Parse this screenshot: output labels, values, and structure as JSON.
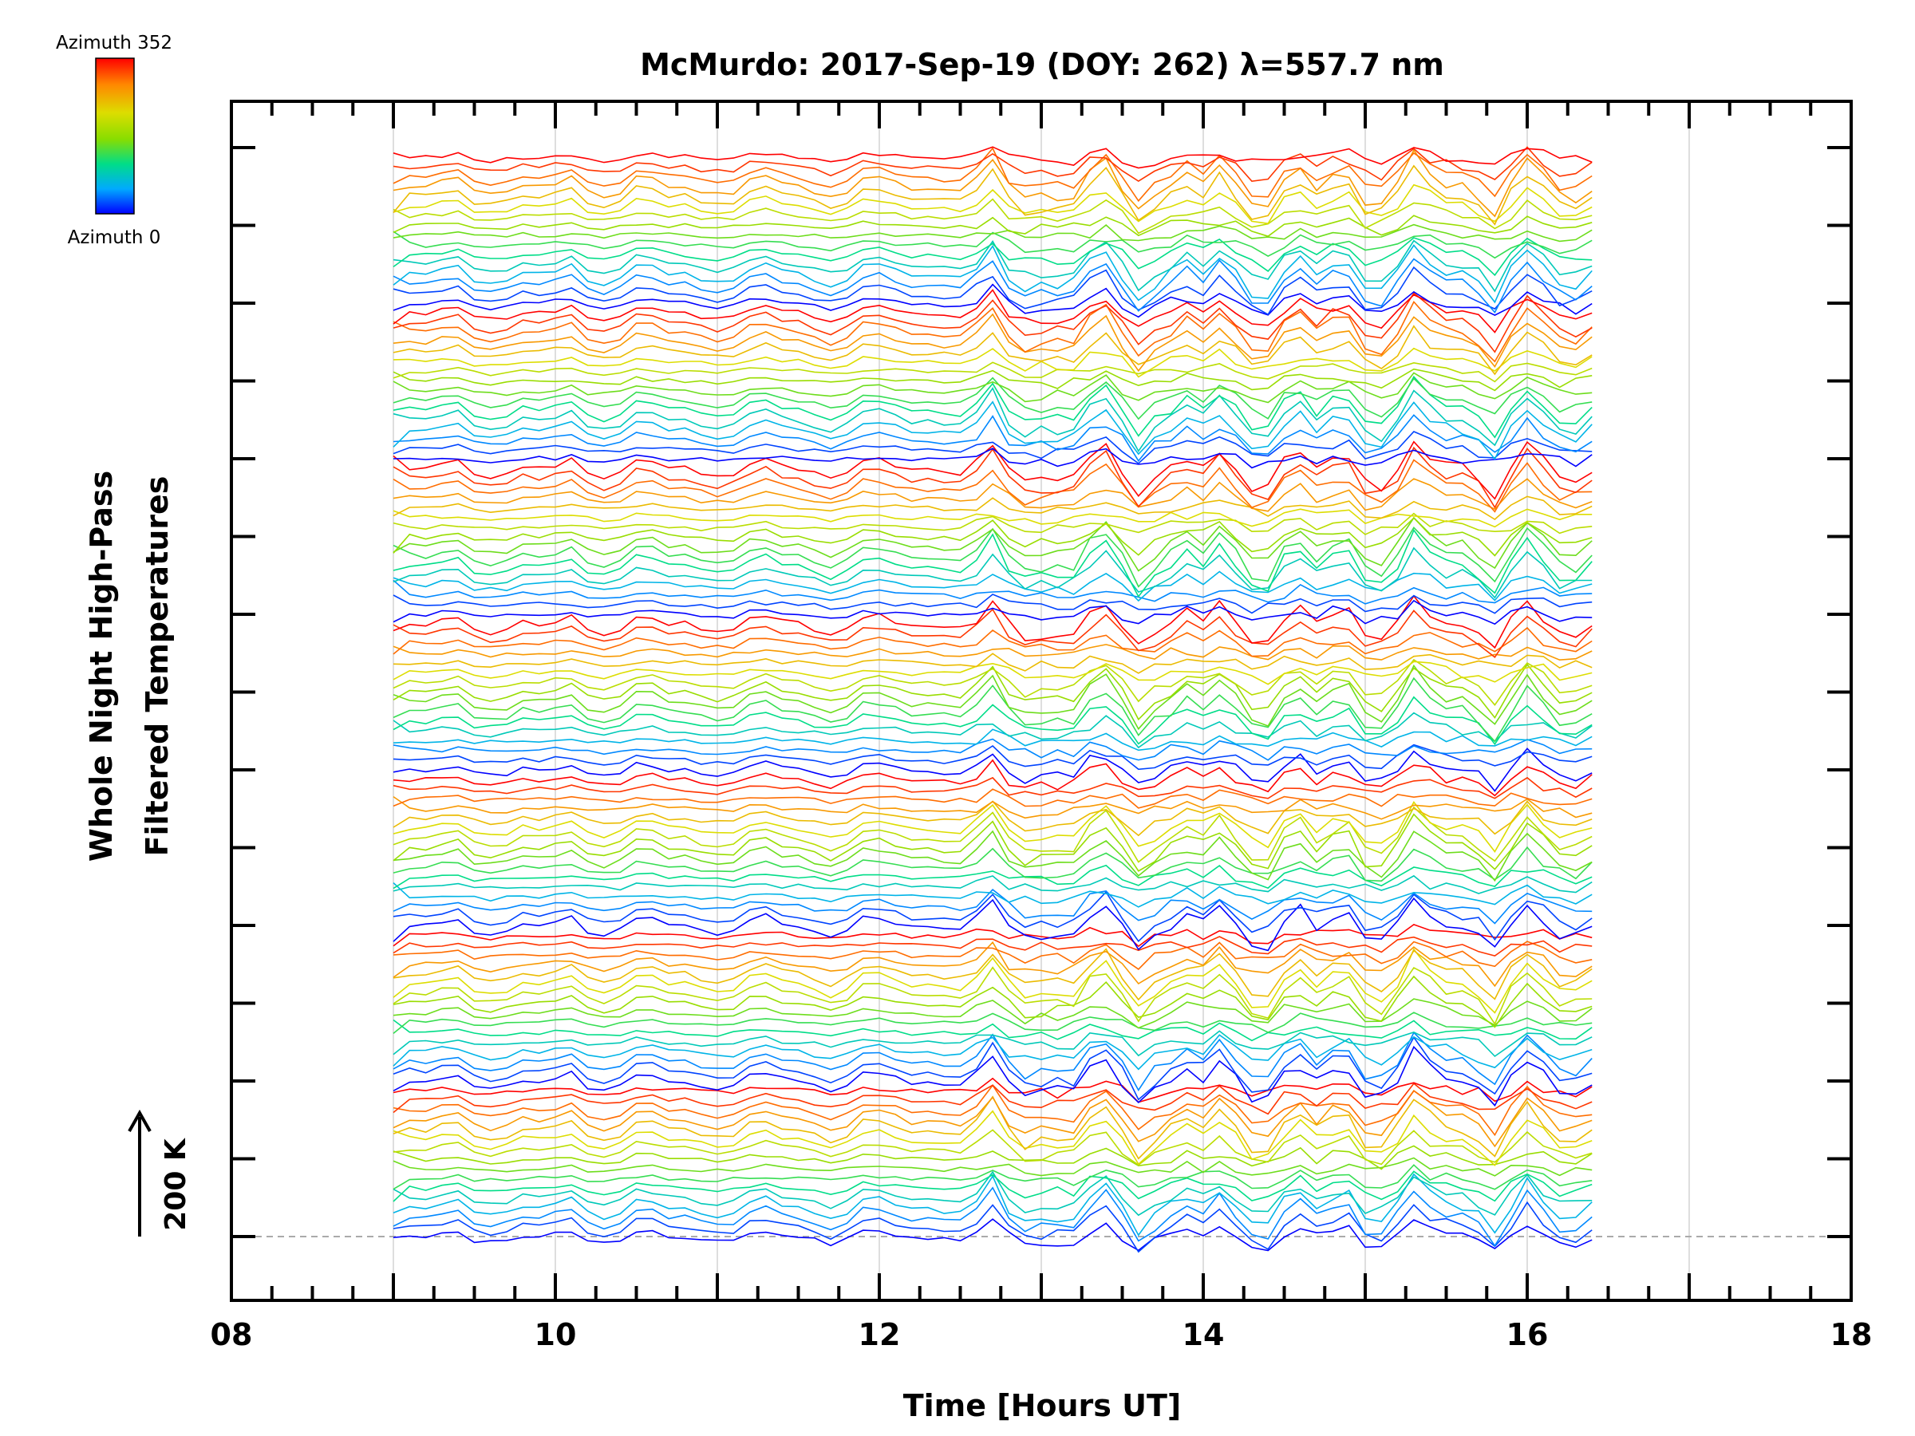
{
  "chart_data": {
    "type": "line",
    "title": "McMurdo: 2017-Sep-19 (DOY: 262) λ=557.7 nm",
    "xlabel": "Time [Hours UT]",
    "ylabel_lines": [
      "Whole Night High-Pass",
      "Filtered Temperatures"
    ],
    "xlim": [
      8,
      18
    ],
    "x_tick_labels": [
      "08",
      "10",
      "12",
      "14",
      "16",
      "18"
    ],
    "x_tick_values": [
      8,
      10,
      12,
      14,
      16,
      18
    ],
    "x_gridlines": [
      9,
      10,
      11,
      12,
      13,
      14,
      15,
      16,
      17
    ],
    "data_range_hours": [
      9.0,
      16.45
    ],
    "sample_interval_hours": 0.1,
    "y_scale_label": "200 K",
    "y_major_ticks": 15,
    "n_groups": 7,
    "azimuths_per_group": 16,
    "color_legend": {
      "top_label": "Azimuth 352",
      "bottom_label": "Azimuth 0",
      "azimuth_min": 0,
      "azimuth_max": 352,
      "colormap": [
        "#ff0000",
        "#ff8800",
        "#dddd00",
        "#88dd00",
        "#00dd88",
        "#00aaff",
        "#0000ff"
      ]
    },
    "grid": "vertical"
  }
}
